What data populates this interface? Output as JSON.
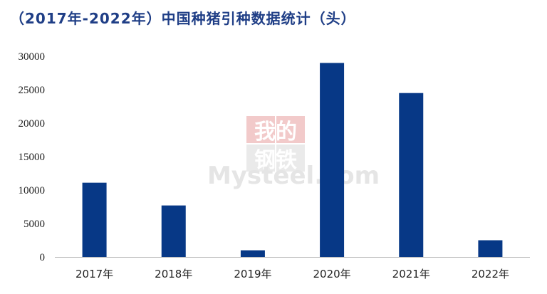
{
  "title": "（2017年-2022年）中国种猪引种数据统计（头）",
  "watermark": {
    "line1": "我的",
    "line2": "钢铁",
    "brand": "Mysteel.com"
  },
  "colors": {
    "bar": "#073886",
    "title": "#1f3e86",
    "axis": "#bfbfbf",
    "watermark_red": "#e8a0a0",
    "watermark_gray": "#d9d9d9"
  },
  "chart_data": {
    "type": "bar",
    "title": "（2017年-2022年）中国种猪引种数据统计（头）",
    "categories": [
      "2017年",
      "2018年",
      "2019年",
      "2020年",
      "2021年",
      "2022年"
    ],
    "values": [
      11100,
      7700,
      1000,
      29000,
      24500,
      2500
    ],
    "ylim": [
      0,
      30000
    ],
    "yticks": [
      "0",
      "5000",
      "10000",
      "15000",
      "20000",
      "25000",
      "30000"
    ],
    "grid": false,
    "legend": "none"
  }
}
